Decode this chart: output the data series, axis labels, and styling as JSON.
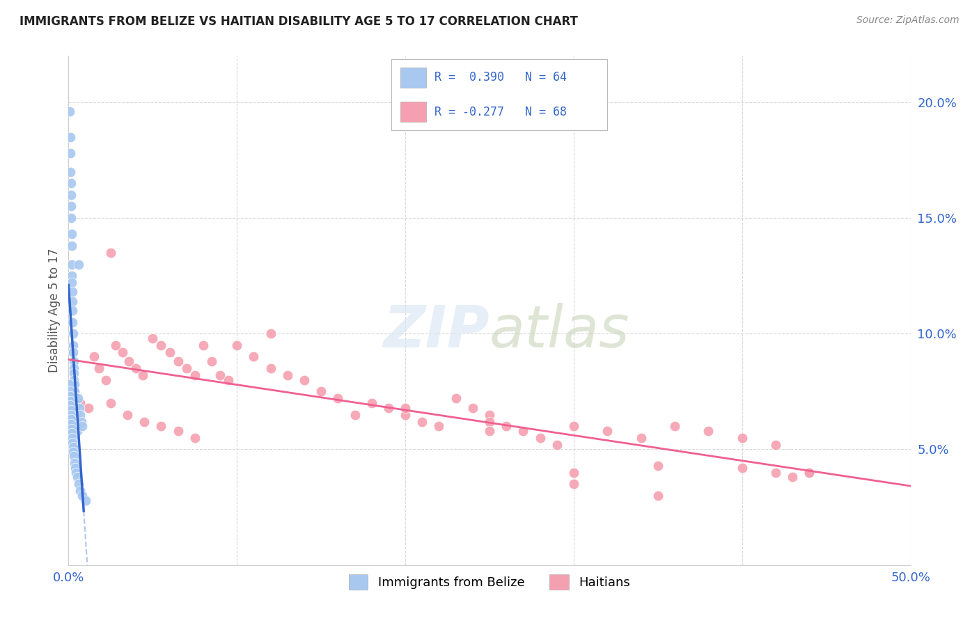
{
  "title": "IMMIGRANTS FROM BELIZE VS HAITIAN DISABILITY AGE 5 TO 17 CORRELATION CHART",
  "source": "Source: ZipAtlas.com",
  "ylabel": "Disability Age 5 to 17",
  "right_yticks": [
    "20.0%",
    "15.0%",
    "10.0%",
    "5.0%"
  ],
  "right_ytick_vals": [
    0.2,
    0.15,
    0.1,
    0.05
  ],
  "xlim": [
    0.0,
    0.5
  ],
  "ylim": [
    0.0,
    0.22
  ],
  "belize_R": 0.39,
  "belize_N": 64,
  "haitian_R": -0.277,
  "haitian_N": 68,
  "belize_color": "#a8c8f0",
  "haitian_color": "#f5a0b0",
  "belize_line_color": "#3366cc",
  "haitian_line_color": "#f06090",
  "trend_line_belize_dashed_color": "#b0c8e8",
  "background_color": "#ffffff",
  "grid_color": "#d8d8d8",
  "belize_x": [
    0.0008,
    0.001,
    0.001,
    0.0012,
    0.0013,
    0.0015,
    0.0015,
    0.0016,
    0.0017,
    0.0018,
    0.002,
    0.002,
    0.0021,
    0.0022,
    0.0023,
    0.0024,
    0.0025,
    0.0026,
    0.0027,
    0.0028,
    0.003,
    0.0031,
    0.0032,
    0.0033,
    0.0034,
    0.0035,
    0.0036,
    0.0038,
    0.004,
    0.0042,
    0.0044,
    0.0046,
    0.0048,
    0.005,
    0.0055,
    0.006,
    0.0065,
    0.007,
    0.0075,
    0.008,
    0.0008,
    0.0009,
    0.001,
    0.0011,
    0.0012,
    0.0013,
    0.0014,
    0.0015,
    0.0016,
    0.0018,
    0.002,
    0.0022,
    0.0024,
    0.0026,
    0.0028,
    0.003,
    0.0035,
    0.004,
    0.0045,
    0.005,
    0.006,
    0.007,
    0.008,
    0.01
  ],
  "belize_y": [
    0.196,
    0.185,
    0.178,
    0.17,
    0.165,
    0.16,
    0.155,
    0.15,
    0.143,
    0.138,
    0.13,
    0.125,
    0.122,
    0.118,
    0.114,
    0.11,
    0.105,
    0.1,
    0.095,
    0.092,
    0.088,
    0.085,
    0.083,
    0.08,
    0.078,
    0.075,
    0.073,
    0.07,
    0.068,
    0.066,
    0.064,
    0.062,
    0.06,
    0.058,
    0.072,
    0.13,
    0.068,
    0.065,
    0.062,
    0.06,
    0.078,
    0.075,
    0.073,
    0.071,
    0.069,
    0.067,
    0.065,
    0.063,
    0.061,
    0.059,
    0.057,
    0.055,
    0.053,
    0.051,
    0.049,
    0.047,
    0.044,
    0.042,
    0.04,
    0.038,
    0.035,
    0.032,
    0.03,
    0.028
  ],
  "haitian_x": [
    0.003,
    0.007,
    0.012,
    0.015,
    0.018,
    0.022,
    0.025,
    0.028,
    0.032,
    0.036,
    0.04,
    0.044,
    0.05,
    0.055,
    0.06,
    0.065,
    0.07,
    0.075,
    0.08,
    0.085,
    0.09,
    0.095,
    0.1,
    0.11,
    0.12,
    0.13,
    0.14,
    0.15,
    0.16,
    0.17,
    0.18,
    0.19,
    0.2,
    0.21,
    0.22,
    0.23,
    0.24,
    0.25,
    0.26,
    0.27,
    0.28,
    0.29,
    0.3,
    0.32,
    0.34,
    0.36,
    0.38,
    0.4,
    0.42,
    0.44,
    0.025,
    0.035,
    0.045,
    0.055,
    0.065,
    0.075,
    0.12,
    0.25,
    0.3,
    0.35,
    0.4,
    0.42,
    0.43,
    0.44,
    0.2,
    0.25,
    0.3,
    0.35
  ],
  "haitian_y": [
    0.075,
    0.07,
    0.068,
    0.09,
    0.085,
    0.08,
    0.135,
    0.095,
    0.092,
    0.088,
    0.085,
    0.082,
    0.098,
    0.095,
    0.092,
    0.088,
    0.085,
    0.082,
    0.095,
    0.088,
    0.082,
    0.08,
    0.095,
    0.09,
    0.085,
    0.082,
    0.08,
    0.075,
    0.072,
    0.065,
    0.07,
    0.068,
    0.065,
    0.062,
    0.06,
    0.072,
    0.068,
    0.065,
    0.06,
    0.058,
    0.055,
    0.052,
    0.06,
    0.058,
    0.055,
    0.06,
    0.058,
    0.055,
    0.052,
    0.04,
    0.07,
    0.065,
    0.062,
    0.06,
    0.058,
    0.055,
    0.1,
    0.062,
    0.04,
    0.043,
    0.042,
    0.04,
    0.038,
    0.04,
    0.068,
    0.058,
    0.035,
    0.03
  ]
}
